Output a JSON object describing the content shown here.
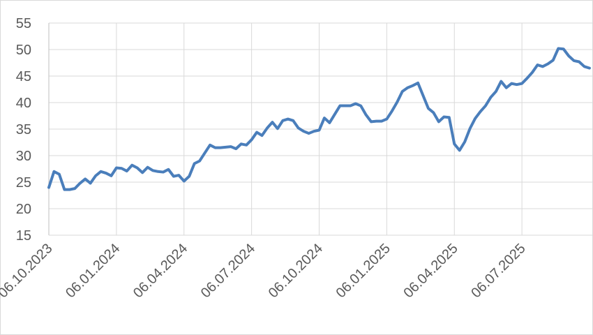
{
  "chart_data": {
    "type": "line",
    "categories": [
      "06.10.2023",
      null,
      null,
      null,
      null,
      null,
      null,
      null,
      null,
      null,
      null,
      null,
      null,
      "06.01.2024",
      null,
      null,
      null,
      null,
      null,
      null,
      null,
      null,
      null,
      null,
      null,
      null,
      "06.04.2024",
      null,
      null,
      null,
      null,
      null,
      null,
      null,
      null,
      null,
      null,
      null,
      null,
      "06.07.2024",
      null,
      null,
      null,
      null,
      null,
      null,
      null,
      null,
      null,
      null,
      null,
      null,
      "06.10.2024",
      null,
      null,
      null,
      null,
      null,
      null,
      null,
      null,
      null,
      null,
      null,
      null,
      "06.01.2025",
      null,
      null,
      null,
      null,
      null,
      null,
      null,
      null,
      null,
      null,
      null,
      null,
      "06.04.2025",
      null,
      null,
      null,
      null,
      null,
      null,
      null,
      null,
      null,
      null,
      null,
      null,
      "06.07.2025",
      null,
      null,
      null,
      null,
      null,
      null,
      null,
      null,
      null,
      null,
      null,
      null,
      null
    ],
    "series": [
      {
        "color": "#4a7ebb",
        "values": [
          24,
          27,
          26.5,
          23.6,
          23.6,
          23.8,
          24.8,
          25.6,
          24.8,
          26.2,
          27,
          26.7,
          26.2,
          27.7,
          27.6,
          27.1,
          28.2,
          27.7,
          26.8,
          27.8,
          27.2,
          27,
          26.9,
          27.4,
          26.1,
          26.3,
          25.2,
          26.1,
          28.5,
          29,
          30.5,
          32,
          31.5,
          31.5,
          31.6,
          31.7,
          31.3,
          32.2,
          32,
          33,
          34.4,
          33.8,
          35.2,
          36.3,
          35.1,
          36.6,
          36.9,
          36.6,
          35.2,
          34.6,
          34.2,
          34.6,
          34.8,
          37.1,
          36.2,
          37.8,
          39.4,
          39.4,
          39.4,
          39.8,
          39.4,
          37.7,
          36.4,
          36.5,
          36.5,
          36.9,
          38.4,
          40.1,
          42.1,
          42.8,
          43.2,
          43.7,
          41.3,
          38.9,
          38.1,
          36.4,
          37.3,
          37.2,
          32.2,
          31,
          32.6,
          35.1,
          37,
          38.3,
          39.4,
          41,
          42.1,
          44,
          42.8,
          43.6,
          43.4,
          43.6,
          44.6,
          45.7,
          47.1,
          46.8,
          47.3,
          48,
          50.2,
          50.1,
          48.8,
          47.9,
          47.7,
          46.8,
          46.5
        ]
      }
    ],
    "ylim": [
      15,
      55
    ],
    "yticks": [
      15,
      20,
      25,
      30,
      35,
      40,
      45,
      50,
      55
    ],
    "grid": true
  }
}
